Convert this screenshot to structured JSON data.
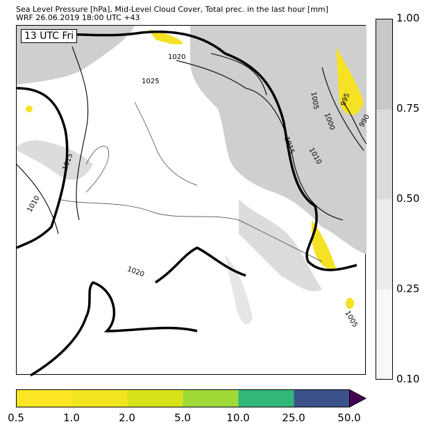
{
  "header": {
    "title": "Sea Level Pressure [hPa], Mid-Level Cloud Cover, Total prec. in the last hour [mm]",
    "subtitle": "WRF 26.06.2019 18:00 UTC +43"
  },
  "map": {
    "time_label": "13 UTC Fri",
    "isobar_labels": [
      "1020",
      "1025",
      "1015",
      "1010",
      "1005",
      "995",
      "1000",
      "990",
      "1015",
      "1010",
      "1020",
      "1005"
    ]
  },
  "cloud_colorbar": {
    "ticks": [
      "1.00",
      "0.75",
      "0.50",
      "0.25",
      "0.10"
    ],
    "colors": [
      "#c8c8c8",
      "#dcdcdc",
      "#ececec",
      "#f7f7f7"
    ]
  },
  "precip_colorbar": {
    "ticks": [
      "0.5",
      "1.0",
      "2.0",
      "5.0",
      "10.0",
      "25.0",
      "50.0"
    ],
    "colors": [
      "#fde725",
      "#f1e51d",
      "#d8e219",
      "#a0da39",
      "#32b67a",
      "#3b528b",
      "#440154"
    ]
  }
}
